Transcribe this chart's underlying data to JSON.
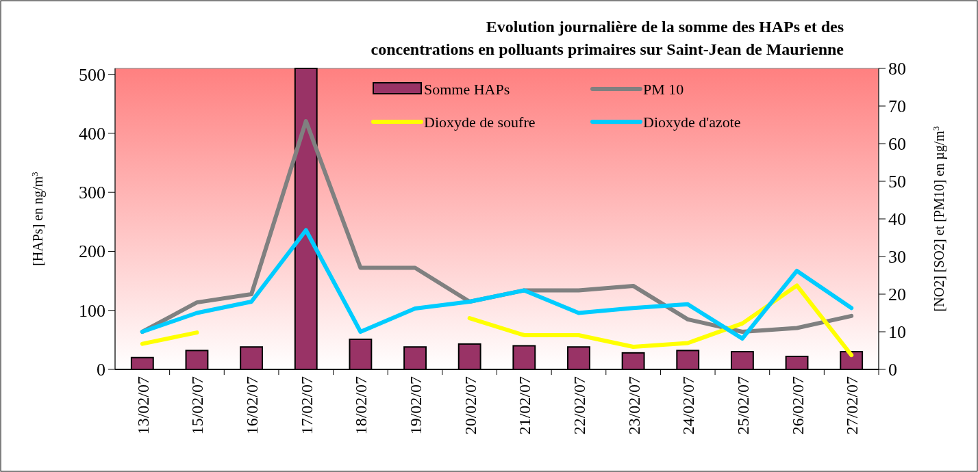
{
  "chart_data": {
    "type": "bar",
    "title": "Evolution journalière de la somme des HAPs et des\nconcentrations en polluants primaires sur Saint-Jean de Maurienne",
    "ylabel": "[HAPs] en ng/m$^{3}$",
    "y2label": "[NO2] [SO2] et [PM10] en µg/m$^{3}$",
    "categories": [
      "13/02/07",
      "15/02/07",
      "16/02/07",
      "17/02/07",
      "18/02/07",
      "19/02/07",
      "20/02/07",
      "21/02/07",
      "22/02/07",
      "23/02/07",
      "24/02/07",
      "25/02/07",
      "26/02/07",
      "27/02/07"
    ],
    "series": [
      {
        "name": "Somme HAPs",
        "color": "#993366",
        "values": [
          20,
          32,
          38,
          510,
          51,
          38,
          43,
          40,
          38,
          28,
          32,
          30,
          22,
          30
        ]
      },
      {
        "name": "PM 10",
        "type": "line",
        "axis": "y2",
        "color": "#808080",
        "values": [
          10,
          17.8,
          20,
          66,
          27,
          27,
          18,
          21,
          21,
          22.2,
          13.3,
          10,
          11,
          14.2
        ]
      },
      {
        "name": "Dioxyde de soufre",
        "type": "line",
        "axis": "y2",
        "color": "#ffff00",
        "values": [
          6.8,
          9.8,
          null,
          null,
          null,
          null,
          13.6,
          9.1,
          9.1,
          6,
          7,
          12.2,
          22.3,
          3.8
        ]
      },
      {
        "name": "Dioxyde d'azote",
        "type": "line",
        "axis": "y2",
        "color": "#00ccff",
        "values": [
          10,
          15,
          18,
          37,
          10,
          16.2,
          18,
          21,
          15,
          16.3,
          17.3,
          8.2,
          26.2,
          16.3
        ]
      }
    ],
    "ylim": [
      0,
      510
    ],
    "yticks": [
      0,
      100,
      200,
      300,
      400,
      500
    ],
    "y2lim": [
      0,
      80
    ],
    "y2ticks": [
      0,
      10,
      20,
      30,
      40,
      50,
      60,
      70,
      80
    ],
    "grid": false,
    "legend": "top"
  }
}
